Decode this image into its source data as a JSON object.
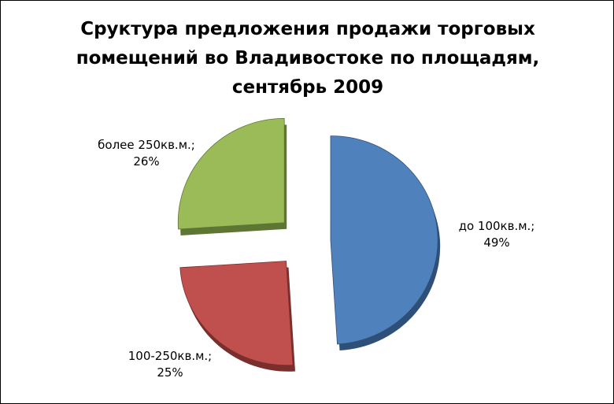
{
  "chart_data": {
    "type": "pie",
    "title": "Сруктура предложения продажи торговых помещений во Владивостоке по площадям, сентябрь 2009",
    "legend": "none",
    "slices": [
      {
        "label": "до 100кв.м.;",
        "percent_label": "49%",
        "value": 49,
        "color": "#4f81bd",
        "shade": "#2e4f77"
      },
      {
        "label": "100-250кв.м.;",
        "percent_label": "25%",
        "value": 25,
        "color": "#c0504d",
        "shade": "#7a2f2d"
      },
      {
        "label": "более 250кв.м.;",
        "percent_label": "26%",
        "value": 26,
        "color": "#9bbb59",
        "shade": "#5e7634"
      }
    ]
  }
}
